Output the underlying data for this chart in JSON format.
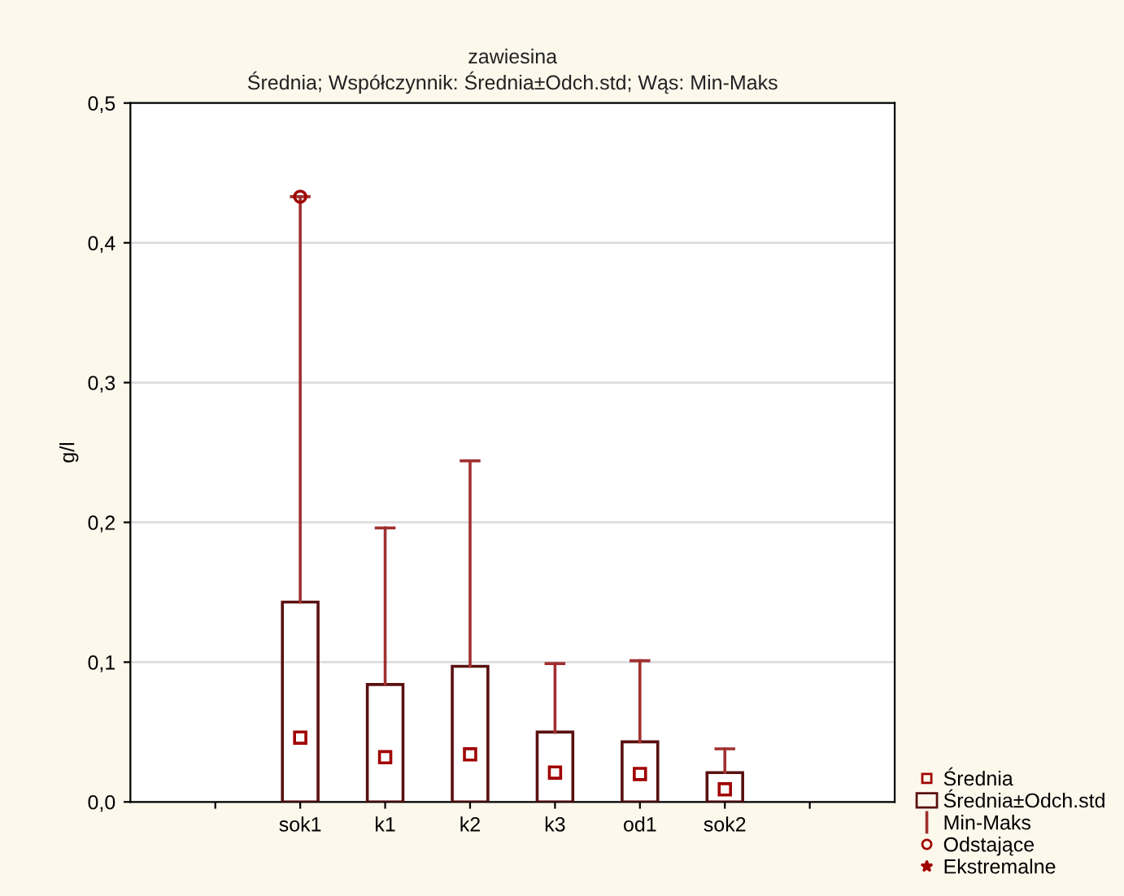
{
  "chart_data": {
    "type": "box",
    "title": "zawiesina",
    "subtitle": "Średnia; Współczynnik: Średnia±Odch.std; Wąs: Min-Maks",
    "ylabel": "g/l",
    "categories": [
      null,
      "sok1",
      "k1",
      "k2",
      "k3",
      "od1",
      "sok2",
      null
    ],
    "ylim": [
      0,
      0.5
    ],
    "yticks": [
      {
        "value": 0,
        "label": "0,0"
      },
      {
        "value": 0.1,
        "label": "0,1"
      },
      {
        "value": 0.2,
        "label": "0,2"
      },
      {
        "value": 0.3,
        "label": "0,3"
      },
      {
        "value": 0.4,
        "label": "0,4"
      },
      {
        "value": 0.5,
        "label": "0,5"
      }
    ],
    "grid": "y",
    "annotations": [
      "Średnia",
      "Średnia±Odch.std",
      "Min-Maks",
      "Odstające",
      "Ekstremalne"
    ],
    "boxes": [
      null,
      {
        "low": 0,
        "q1": 0,
        "median": 0.046,
        "q3": 0.143,
        "high": 0.433,
        "outliers": [
          0.433
        ]
      },
      {
        "low": 0,
        "q1": 0,
        "median": 0.032,
        "q3": 0.084,
        "high": 0.196
      },
      {
        "low": 0,
        "q1": 0,
        "median": 0.034,
        "q3": 0.097,
        "high": 0.244
      },
      {
        "low": 0,
        "q1": 0,
        "median": 0.021,
        "q3": 0.05,
        "high": 0.099
      },
      {
        "low": 0,
        "q1": 0,
        "median": 0.02,
        "q3": 0.043,
        "high": 0.101
      },
      {
        "low": 0,
        "q1": 0,
        "median": 0.009,
        "q3": 0.021,
        "high": 0.038
      },
      null
    ]
  }
}
